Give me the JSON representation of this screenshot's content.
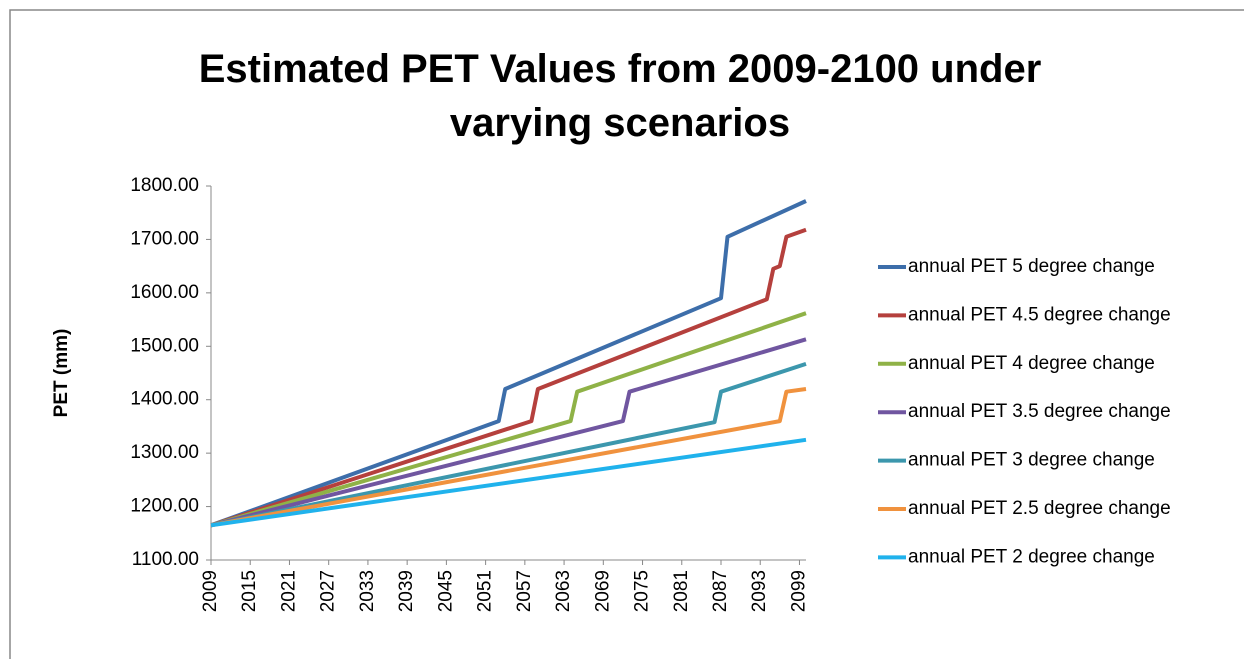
{
  "chart_data": {
    "type": "line",
    "title": "Estimated PET Values from 2009-2100 under varying scenarios",
    "y_label": "PET (mm)",
    "xlim": [
      2009,
      2100
    ],
    "xticks": [
      2009,
      2015,
      2021,
      2027,
      2033,
      2039,
      2045,
      2051,
      2057,
      2063,
      2069,
      2075,
      2081,
      2087,
      2093,
      2099
    ],
    "ylim": [
      1100,
      1800
    ],
    "yticks": [
      {
        "value": 1100,
        "label": "1100.00"
      },
      {
        "value": 1200,
        "label": "1200.00"
      },
      {
        "value": 1300,
        "label": "1300.00"
      },
      {
        "value": 1400,
        "label": "1400.00"
      },
      {
        "value": 1500,
        "label": "1500.00"
      },
      {
        "value": 1600,
        "label": "1600.00"
      },
      {
        "value": 1700,
        "label": "1700.00"
      },
      {
        "value": 1800,
        "label": "1800.00"
      }
    ],
    "grid": false,
    "legend": "right",
    "series": [
      {
        "name": "annual PET 5 degree change",
        "color": "#3d6eaa",
        "x": [
          2009,
          2053,
          2054,
          2087,
          2088,
          2100
        ],
        "values": [
          1165,
          1360,
          1420,
          1590,
          1705,
          1772
        ]
      },
      {
        "name": "annual PET 4.5 degree change",
        "color": "#b5403d",
        "x": [
          2009,
          2058,
          2059,
          2094,
          2095,
          2096,
          2097,
          2100
        ],
        "values": [
          1165,
          1360,
          1420,
          1588,
          1645,
          1650,
          1705,
          1718
        ]
      },
      {
        "name": "annual PET 4 degree change",
        "color": "#8fb247",
        "x": [
          2009,
          2064,
          2065,
          2100
        ],
        "values": [
          1165,
          1360,
          1415,
          1562
        ]
      },
      {
        "name": "annual PET 3.5 degree change",
        "color": "#7056a0",
        "x": [
          2009,
          2072,
          2073,
          2100
        ],
        "values": [
          1165,
          1360,
          1415,
          1513
        ]
      },
      {
        "name": "annual PET 3 degree change",
        "color": "#3c97ad",
        "x": [
          2009,
          2086,
          2087,
          2100
        ],
        "values": [
          1165,
          1358,
          1415,
          1467
        ]
      },
      {
        "name": "annual PET 2.5 degree change",
        "color": "#f0923e",
        "x": [
          2009,
          2096,
          2097,
          2100
        ],
        "values": [
          1165,
          1360,
          1415,
          1420
        ]
      },
      {
        "name": "annual PET 2 degree change",
        "color": "#20b2ec",
        "x": [
          2009,
          2100
        ],
        "values": [
          1165,
          1325
        ]
      }
    ]
  }
}
